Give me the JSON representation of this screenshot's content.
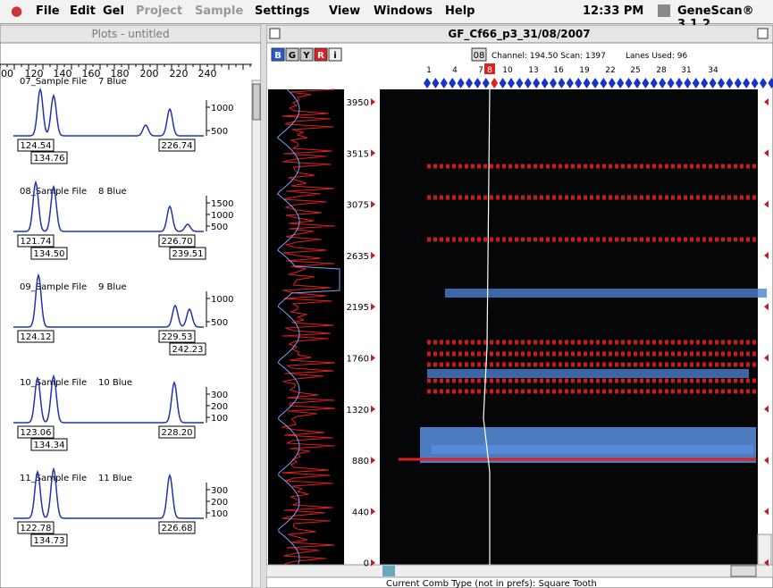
{
  "menubar": {
    "items": [
      "File",
      "Edit",
      "Gel",
      "Project",
      "Sample",
      "Settings",
      "View",
      "Windows",
      "Help"
    ],
    "clock": "12:33 PM",
    "app": "GeneScan® 3.1.2"
  },
  "plots_window": {
    "title": "Plots - untitled",
    "ruler": [
      "00",
      "120",
      "140",
      "160",
      "180",
      "200",
      "220",
      "240"
    ],
    "plots": [
      {
        "name": "07_Sample File",
        "dye": "7 Blue",
        "yticks": [
          "1000",
          "500"
        ],
        "peaks": [
          "124.54",
          "134.76",
          "226.74"
        ]
      },
      {
        "name": "08_Sample File",
        "dye": "8 Blue",
        "yticks": [
          "1500",
          "1000",
          "500"
        ],
        "peaks": [
          "121.74",
          "134.50",
          "226.70",
          "239.51"
        ]
      },
      {
        "name": "09_Sample File",
        "dye": "9 Blue",
        "yticks": [
          "1000",
          "500"
        ],
        "peaks": [
          "124.12",
          "229.53",
          "242.23"
        ]
      },
      {
        "name": "10_Sample File",
        "dye": "10 Blue",
        "yticks": [
          "300",
          "200",
          "100"
        ],
        "peaks": [
          "123.06",
          "134.34",
          "228.20"
        ]
      },
      {
        "name": "11_Sample File",
        "dye": "11 Blue",
        "yticks": [
          "300",
          "200",
          "100"
        ],
        "peaks": [
          "122.78",
          "134.73",
          "226.68"
        ]
      }
    ]
  },
  "gel_window": {
    "title": "GF_Cf66_p3_31/08/2007",
    "buttons": [
      "B",
      "G",
      "Y",
      "R",
      "i"
    ],
    "lane": "08",
    "channel": "Channel: 194.50 Scan: 1397",
    "lanes_used": "Lanes Used: 96",
    "lane_numbers": [
      "1",
      "4",
      "7",
      "8",
      "10",
      "13",
      "16",
      "19",
      "22",
      "25",
      "28",
      "31",
      "34"
    ],
    "scan_scale": [
      "3950",
      "3515",
      "3075",
      "2635",
      "2195",
      "1760",
      "1320",
      "880",
      "440",
      "0"
    ],
    "status": "Current Comb Type (not in prefs): Square Tooth"
  }
}
